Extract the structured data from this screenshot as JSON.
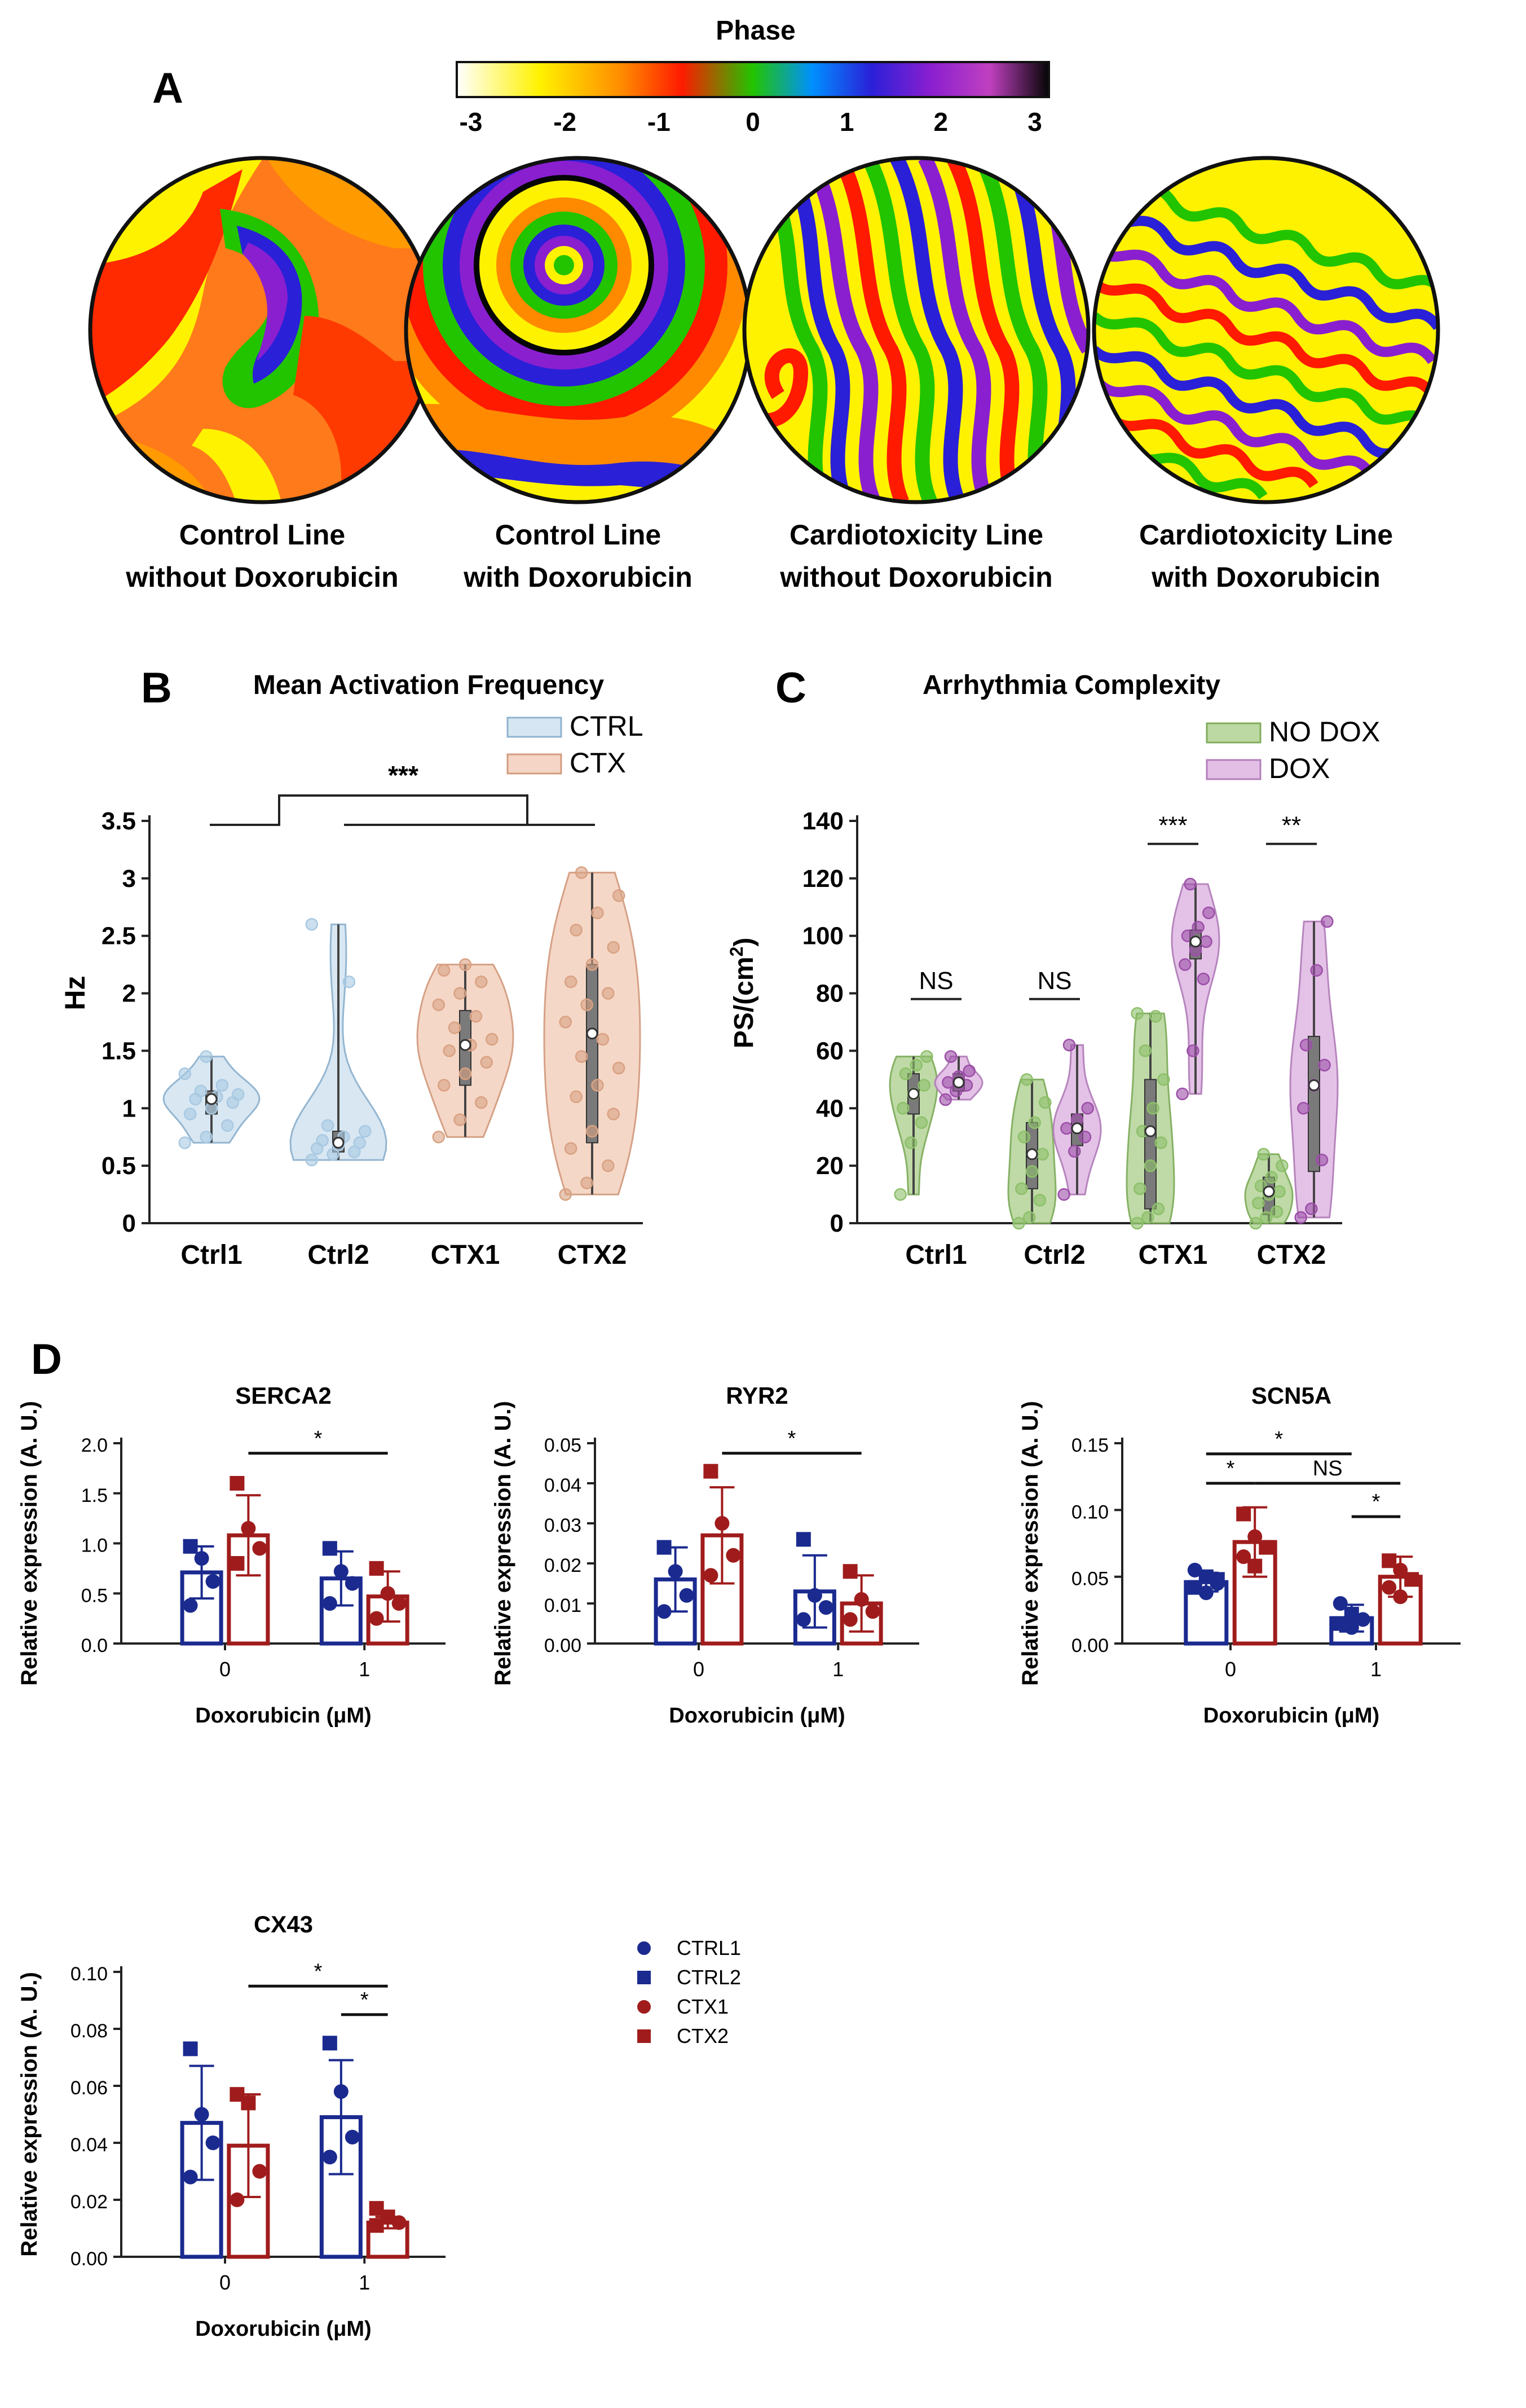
{
  "colors": {
    "ctrl_fill": "#d6e6f2",
    "ctrl_stroke": "#8fb3cf",
    "ctrl_dot": "#a9c9e2",
    "ctx_fill": "#f5d5c5",
    "ctx_stroke": "#d39c80",
    "ctx_dot": "#d9a283",
    "nodox_fill": "#bcd9a3",
    "nodox_stroke": "#80ad5c",
    "nodox_dot": "#8dc06a",
    "dox_fill": "#e3bfe6",
    "dox_stroke": "#b37fba",
    "dox_dot": "#9c4fa8",
    "blue": "#1a2a8f",
    "red": "#a01c1c"
  },
  "panelA": {
    "letter": "A",
    "colorbar_title": "Phase",
    "colorbar_ticks": [
      "-3",
      "-2",
      "-1",
      "0",
      "1",
      "2",
      "3"
    ],
    "maps": [
      {
        "line1": "Control Line",
        "line2": "without Doxorubicin"
      },
      {
        "line1": "Control Line",
        "line2": "with Doxorubicin"
      },
      {
        "line1": "Cardiotoxicity Line",
        "line2": "without Doxorubicin"
      },
      {
        "line1": "Cardiotoxicity Line",
        "line2": "with Doxorubicin"
      }
    ]
  },
  "chart_data": [
    {
      "id": "B",
      "type": "violin",
      "letter": "B",
      "title": "Mean Activation Frequency",
      "ylabel": "Hz",
      "xlabel": "",
      "ylim": [
        0,
        3.5
      ],
      "yticks": [
        "0",
        "0.5",
        "1",
        "1.5",
        "2",
        "2.5",
        "3",
        "3.5"
      ],
      "ytick_values": [
        0,
        0.5,
        1,
        1.5,
        2,
        2.5,
        3,
        3.5
      ],
      "categories": [
        "Ctrl1",
        "Ctrl2",
        "CTX1",
        "CTX2"
      ],
      "legend": [
        "CTRL",
        "CTX"
      ],
      "significance": "***",
      "groups": [
        {
          "category": "Ctrl1",
          "series": "CTRL",
          "median": 1.08,
          "q1": 0.95,
          "q3": 1.15,
          "min": 0.7,
          "max": 1.45,
          "points": [
            0.7,
            0.75,
            0.85,
            0.95,
            1.0,
            1.05,
            1.08,
            1.1,
            1.12,
            1.15,
            1.2,
            1.3,
            1.45
          ]
        },
        {
          "category": "Ctrl2",
          "series": "CTRL",
          "median": 0.7,
          "q1": 0.62,
          "q3": 0.8,
          "min": 0.55,
          "max": 2.6,
          "points": [
            0.55,
            0.6,
            0.62,
            0.65,
            0.68,
            0.7,
            0.72,
            0.75,
            0.8,
            0.85,
            2.1,
            2.6
          ]
        },
        {
          "category": "CTX1",
          "series": "CTX",
          "median": 1.55,
          "q1": 1.2,
          "q3": 1.85,
          "min": 0.75,
          "max": 2.25,
          "points": [
            0.75,
            0.9,
            1.05,
            1.2,
            1.3,
            1.4,
            1.5,
            1.55,
            1.6,
            1.7,
            1.8,
            1.9,
            2.0,
            2.1,
            2.2,
            2.25
          ]
        },
        {
          "category": "CTX2",
          "series": "CTX",
          "median": 1.65,
          "q1": 0.7,
          "q3": 2.25,
          "min": 0.25,
          "max": 3.05,
          "points": [
            0.25,
            0.35,
            0.5,
            0.65,
            0.8,
            0.95,
            1.1,
            1.2,
            1.35,
            1.45,
            1.6,
            1.75,
            1.9,
            2.0,
            2.1,
            2.25,
            2.4,
            2.55,
            2.7,
            2.85,
            3.05
          ]
        }
      ]
    },
    {
      "id": "C",
      "type": "violin",
      "letter": "C",
      "title": "Arrhythmia Complexity",
      "ylabel": "PS/(cm2)",
      "ylabel_main": "PS/(cm",
      "ylabel_sup": "2",
      "ylabel_end": ")",
      "ylim": [
        0,
        140
      ],
      "yticks": [
        "0",
        "20",
        "40",
        "60",
        "80",
        "100",
        "120",
        "140"
      ],
      "ytick_values": [
        0,
        20,
        40,
        60,
        80,
        100,
        120,
        140
      ],
      "categories": [
        "Ctrl1",
        "Ctrl2",
        "CTX1",
        "CTX2"
      ],
      "legend": [
        "NO DOX",
        "DOX"
      ],
      "significance": [
        "NS",
        "NS",
        "***",
        "**"
      ],
      "groups": [
        {
          "category": "Ctrl1",
          "series": "NO DOX",
          "median": 45,
          "q1": 38,
          "q3": 52,
          "min": 10,
          "max": 58,
          "points": [
            10,
            28,
            35,
            40,
            45,
            48,
            52,
            55,
            58
          ]
        },
        {
          "category": "Ctrl1",
          "series": "DOX",
          "median": 49,
          "q1": 46,
          "q3": 52,
          "min": 43,
          "max": 58,
          "points": [
            43,
            46,
            48,
            49,
            51,
            53,
            58
          ]
        },
        {
          "category": "Ctrl2",
          "series": "NO DOX",
          "median": 24,
          "q1": 12,
          "q3": 35,
          "min": 0,
          "max": 50,
          "points": [
            0,
            2,
            8,
            12,
            18,
            24,
            30,
            35,
            42,
            50
          ]
        },
        {
          "category": "Ctrl2",
          "series": "DOX",
          "median": 33,
          "q1": 27,
          "q3": 38,
          "min": 10,
          "max": 62,
          "points": [
            10,
            25,
            30,
            33,
            36,
            40,
            62
          ]
        },
        {
          "category": "CTX1",
          "series": "NO DOX",
          "median": 32,
          "q1": 5,
          "q3": 50,
          "min": 0,
          "max": 73,
          "points": [
            0,
            2,
            5,
            12,
            20,
            28,
            32,
            40,
            50,
            60,
            72,
            73
          ]
        },
        {
          "category": "CTX1",
          "series": "DOX",
          "median": 98,
          "q1": 92,
          "q3": 102,
          "min": 45,
          "max": 118,
          "points": [
            45,
            60,
            85,
            90,
            95,
            98,
            100,
            103,
            108,
            118
          ]
        },
        {
          "category": "CTX2",
          "series": "NO DOX",
          "median": 11,
          "q1": 3,
          "q3": 16,
          "min": 0,
          "max": 24,
          "points": [
            0,
            2,
            4,
            7,
            10,
            11,
            13,
            16,
            20,
            24
          ]
        },
        {
          "category": "CTX2",
          "series": "DOX",
          "median": 48,
          "q1": 18,
          "q3": 65,
          "min": 2,
          "max": 105,
          "points": [
            2,
            5,
            22,
            40,
            48,
            55,
            62,
            88,
            105
          ]
        }
      ]
    },
    {
      "id": "D1",
      "type": "bar",
      "title": "SERCA2",
      "ylabel": "Relative expression (A. U.)",
      "xlabel": "Doxorubicin (μM)",
      "ylim": [
        0,
        2.0
      ],
      "yticks": [
        "0.0",
        "0.5",
        "1.0",
        "1.5",
        "2.0"
      ],
      "ytick_values": [
        0,
        0.5,
        1.0,
        1.5,
        2.0
      ],
      "categories": [
        "0",
        "1"
      ],
      "series": [
        {
          "name": "CTRL",
          "values": [
            0.71,
            0.65
          ],
          "sd": [
            0.26,
            0.27
          ],
          "points": [
            [
              {
                "v": 0.97,
                "m": "s"
              },
              {
                "v": 0.85,
                "m": "c"
              },
              {
                "v": 0.62,
                "m": "c"
              },
              {
                "v": 0.38,
                "m": "c"
              }
            ],
            [
              {
                "v": 0.95,
                "m": "s"
              },
              {
                "v": 0.72,
                "m": "c"
              },
              {
                "v": 0.6,
                "m": "c"
              },
              {
                "v": 0.4,
                "m": "c"
              }
            ]
          ]
        },
        {
          "name": "CTX",
          "values": [
            1.08,
            0.47
          ],
          "sd": [
            0.4,
            0.25
          ],
          "points": [
            [
              {
                "v": 1.6,
                "m": "s"
              },
              {
                "v": 1.15,
                "m": "c"
              },
              {
                "v": 0.95,
                "m": "c"
              },
              {
                "v": 0.8,
                "m": "s"
              }
            ],
            [
              {
                "v": 0.75,
                "m": "s"
              },
              {
                "v": 0.5,
                "m": "c"
              },
              {
                "v": 0.4,
                "m": "c"
              },
              {
                "v": 0.25,
                "m": "c"
              }
            ]
          ]
        }
      ],
      "significance": [
        {
          "label": "*",
          "from": [
            0,
            1
          ],
          "to": [
            1,
            1
          ],
          "y": 1.9
        }
      ]
    },
    {
      "id": "D2",
      "type": "bar",
      "title": "RYR2",
      "ylabel": "Relative expression (A. U.)",
      "xlabel": "Doxorubicin (μM)",
      "ylim": [
        0,
        0.05
      ],
      "yticks": [
        "0.00",
        "0.01",
        "0.02",
        "0.03",
        "0.04",
        "0.05"
      ],
      "ytick_values": [
        0,
        0.01,
        0.02,
        0.03,
        0.04,
        0.05
      ],
      "categories": [
        "0",
        "1"
      ],
      "series": [
        {
          "name": "CTRL",
          "values": [
            0.016,
            0.013
          ],
          "sd": [
            0.008,
            0.009
          ],
          "points": [
            [
              {
                "v": 0.024,
                "m": "s"
              },
              {
                "v": 0.018,
                "m": "c"
              },
              {
                "v": 0.012,
                "m": "c"
              },
              {
                "v": 0.008,
                "m": "c"
              }
            ],
            [
              {
                "v": 0.026,
                "m": "s"
              },
              {
                "v": 0.012,
                "m": "c"
              },
              {
                "v": 0.009,
                "m": "c"
              },
              {
                "v": 0.006,
                "m": "c"
              }
            ]
          ]
        },
        {
          "name": "CTX",
          "values": [
            0.027,
            0.01
          ],
          "sd": [
            0.012,
            0.007
          ],
          "points": [
            [
              {
                "v": 0.043,
                "m": "s"
              },
              {
                "v": 0.03,
                "m": "c"
              },
              {
                "v": 0.022,
                "m": "c"
              },
              {
                "v": 0.017,
                "m": "c"
              }
            ],
            [
              {
                "v": 0.018,
                "m": "s"
              },
              {
                "v": 0.011,
                "m": "c"
              },
              {
                "v": 0.008,
                "m": "c"
              },
              {
                "v": 0.006,
                "m": "c"
              }
            ]
          ]
        }
      ],
      "significance": [
        {
          "label": "*",
          "from": [
            0,
            1
          ],
          "to": [
            1,
            1
          ],
          "y": 0.0475
        }
      ]
    },
    {
      "id": "D3",
      "type": "bar",
      "title": "SCN5A",
      "ylabel": "Relative expression (A. U.)",
      "xlabel": "Doxorubicin (μM)",
      "ylim": [
        0,
        0.15
      ],
      "yticks": [
        "0.00",
        "0.05",
        "0.10",
        "0.15"
      ],
      "ytick_values": [
        0,
        0.05,
        0.1,
        0.15
      ],
      "categories": [
        "0",
        "1"
      ],
      "series": [
        {
          "name": "CTRL",
          "values": [
            0.046,
            0.019
          ],
          "sd": [
            0.007,
            0.01
          ],
          "points": [
            [
              {
                "v": 0.055,
                "m": "c"
              },
              {
                "v": 0.05,
                "m": "s"
              },
              {
                "v": 0.045,
                "m": "c"
              },
              {
                "v": 0.042,
                "m": "s"
              },
              {
                "v": 0.038,
                "m": "c"
              },
              {
                "v": 0.048,
                "m": "s"
              }
            ],
            [
              {
                "v": 0.03,
                "m": "c"
              },
              {
                "v": 0.022,
                "m": "s"
              },
              {
                "v": 0.018,
                "m": "c"
              },
              {
                "v": 0.015,
                "m": "s"
              },
              {
                "v": 0.012,
                "m": "c"
              }
            ]
          ]
        },
        {
          "name": "CTX",
          "values": [
            0.076,
            0.05
          ],
          "sd": [
            0.026,
            0.015
          ],
          "points": [
            [
              {
                "v": 0.097,
                "m": "s"
              },
              {
                "v": 0.08,
                "m": "c"
              },
              {
                "v": 0.072,
                "m": "s"
              },
              {
                "v": 0.065,
                "m": "c"
              },
              {
                "v": 0.058,
                "m": "s"
              }
            ],
            [
              {
                "v": 0.062,
                "m": "s"
              },
              {
                "v": 0.055,
                "m": "c"
              },
              {
                "v": 0.048,
                "m": "s"
              },
              {
                "v": 0.042,
                "m": "c"
              },
              {
                "v": 0.035,
                "m": "c"
              }
            ]
          ]
        }
      ],
      "significance": [
        {
          "label": "*",
          "from": [
            0,
            0
          ],
          "to": [
            1,
            0
          ],
          "y": 0.142
        },
        {
          "label": "*",
          "from": [
            0,
            0
          ],
          "to": [
            0,
            1
          ],
          "y": 0.12
        },
        {
          "label": "NS",
          "from": [
            0,
            1
          ],
          "to": [
            1,
            1
          ],
          "y": 0.12
        },
        {
          "label": "*",
          "from": [
            1,
            0
          ],
          "to": [
            1,
            1
          ],
          "y": 0.095
        }
      ]
    },
    {
      "id": "D4",
      "type": "bar",
      "title": "CX43",
      "ylabel": "Relative expression (A. U.)",
      "xlabel": "Doxorubicin (μM)",
      "ylim": [
        0,
        0.1
      ],
      "yticks": [
        "0.00",
        "0.02",
        "0.04",
        "0.06",
        "0.08",
        "0.10"
      ],
      "ytick_values": [
        0,
        0.02,
        0.04,
        0.06,
        0.08,
        0.1
      ],
      "categories": [
        "0",
        "1"
      ],
      "series": [
        {
          "name": "CTRL",
          "values": [
            0.047,
            0.049
          ],
          "sd": [
            0.02,
            0.02
          ],
          "points": [
            [
              {
                "v": 0.073,
                "m": "s"
              },
              {
                "v": 0.05,
                "m": "c"
              },
              {
                "v": 0.04,
                "m": "c"
              },
              {
                "v": 0.028,
                "m": "c"
              }
            ],
            [
              {
                "v": 0.075,
                "m": "s"
              },
              {
                "v": 0.058,
                "m": "c"
              },
              {
                "v": 0.042,
                "m": "c"
              },
              {
                "v": 0.035,
                "m": "c"
              }
            ]
          ]
        },
        {
          "name": "CTX",
          "values": [
            0.039,
            0.012
          ],
          "sd": [
            0.018,
            0.002
          ],
          "points": [
            [
              {
                "v": 0.057,
                "m": "s"
              },
              {
                "v": 0.054,
                "m": "s"
              },
              {
                "v": 0.03,
                "m": "c"
              },
              {
                "v": 0.02,
                "m": "c"
              }
            ],
            [
              {
                "v": 0.017,
                "m": "s"
              },
              {
                "v": 0.014,
                "m": "s"
              },
              {
                "v": 0.012,
                "m": "c"
              },
              {
                "v": 0.011,
                "m": "s"
              }
            ]
          ]
        }
      ],
      "significance": [
        {
          "label": "*",
          "from": [
            0,
            1
          ],
          "to": [
            1,
            1
          ],
          "y": 0.095
        },
        {
          "label": "*",
          "from": [
            1,
            0
          ],
          "to": [
            1,
            1
          ],
          "y": 0.085
        }
      ]
    }
  ],
  "legendD": {
    "letter": "D",
    "items": [
      {
        "label": "CTRL1",
        "marker": "circle",
        "color": "#1a2a8f"
      },
      {
        "label": "CTRL2",
        "marker": "square",
        "color": "#1a2a8f"
      },
      {
        "label": "CTX1",
        "marker": "circle",
        "color": "#a01c1c"
      },
      {
        "label": "CTX2",
        "marker": "square",
        "color": "#a01c1c"
      }
    ]
  }
}
